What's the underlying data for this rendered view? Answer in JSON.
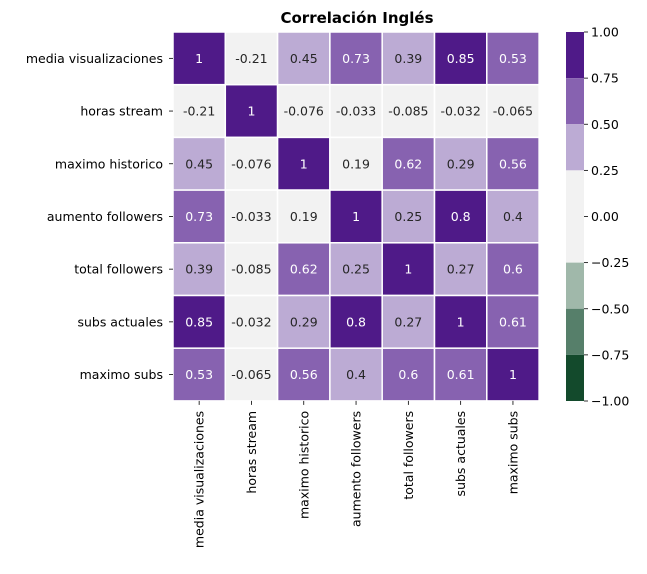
{
  "chart_data": {
    "type": "heatmap",
    "title": "Correlación Inglés",
    "row_labels": [
      "media visualizaciones",
      "horas stream",
      "maximo historico",
      "aumento followers",
      "total followers",
      "subs actuales",
      "maximo subs"
    ],
    "col_labels": [
      "media visualizaciones",
      "horas stream",
      "maximo historico",
      "aumento followers",
      "total followers",
      "subs actuales",
      "maximo subs"
    ],
    "values": [
      [
        1,
        -0.21,
        0.45,
        0.73,
        0.39,
        0.85,
        0.53
      ],
      [
        -0.21,
        1,
        -0.076,
        -0.033,
        -0.085,
        -0.032,
        -0.065
      ],
      [
        0.45,
        -0.076,
        1,
        0.19,
        0.62,
        0.29,
        0.56
      ],
      [
        0.73,
        -0.033,
        0.19,
        1,
        0.25,
        0.8,
        0.4
      ],
      [
        0.39,
        -0.085,
        0.62,
        0.25,
        1,
        0.27,
        0.6
      ],
      [
        0.85,
        -0.032,
        0.29,
        0.8,
        0.27,
        1,
        0.61
      ],
      [
        0.53,
        -0.065,
        0.56,
        0.4,
        0.6,
        0.61,
        1
      ]
    ],
    "value_labels": [
      [
        "1",
        "-0.21",
        "0.45",
        "0.73",
        "0.39",
        "0.85",
        "0.53"
      ],
      [
        "-0.21",
        "1",
        "-0.076",
        "-0.033",
        "-0.085",
        "-0.032",
        "-0.065"
      ],
      [
        "0.45",
        "-0.076",
        "1",
        "0.19",
        "0.62",
        "0.29",
        "0.56"
      ],
      [
        "0.73",
        "-0.033",
        "0.19",
        "1",
        "0.25",
        "0.8",
        "0.4"
      ],
      [
        "0.39",
        "-0.085",
        "0.62",
        "0.25",
        "1",
        "0.27",
        "0.6"
      ],
      [
        "0.85",
        "-0.032",
        "0.29",
        "0.8",
        "0.27",
        "1",
        "0.61"
      ],
      [
        "0.53",
        "-0.065",
        "0.56",
        "0.4",
        "0.6",
        "0.61",
        "1"
      ]
    ],
    "vmin": -1,
    "vmax": 1,
    "colorbar": {
      "ticks": [
        1.0,
        0.75,
        0.5,
        0.25,
        0.0,
        -0.25,
        -0.5,
        -0.75,
        -1.0
      ],
      "tick_labels": [
        "1.00",
        "0.75",
        "0.50",
        "0.25",
        "0.00",
        "−0.25",
        "−0.50",
        "−0.75",
        "−1.00"
      ],
      "bins": [
        {
          "from": 0.75,
          "to": 1.0,
          "color": "#4f1a88"
        },
        {
          "from": 0.5,
          "to": 0.75,
          "color": "#8762b0"
        },
        {
          "from": 0.25,
          "to": 0.5,
          "color": "#bcabd4"
        },
        {
          "from": 0.0,
          "to": 0.25,
          "color": "#f2f2f2"
        },
        {
          "from": -0.25,
          "to": 0.0,
          "color": "#f2f2f2"
        },
        {
          "from": -0.5,
          "to": -0.25,
          "color": "#a0b8aa"
        },
        {
          "from": -0.75,
          "to": -0.5,
          "color": "#567f6a"
        },
        {
          "from": -1.0,
          "to": -0.75,
          "color": "#134a2c"
        }
      ]
    },
    "gridlines": "white",
    "legend": "colorbar-right"
  }
}
